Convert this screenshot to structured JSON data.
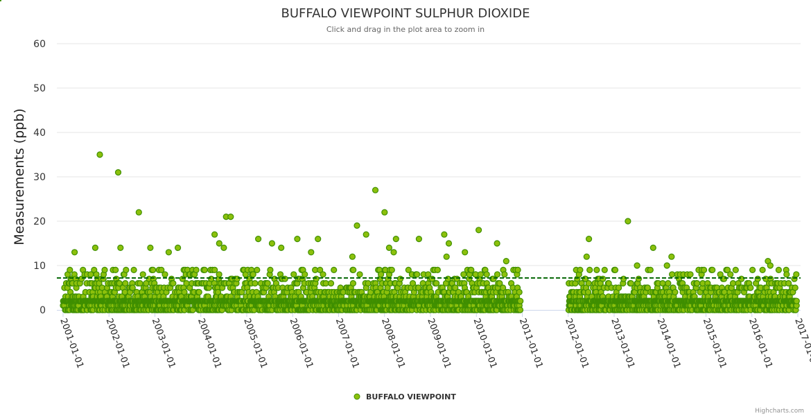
{
  "chart_data": {
    "type": "scatter",
    "title": "BUFFALO VIEWPOINT SULPHUR DIOXIDE",
    "subtitle": "Click and drag in the plot area to zoom in",
    "ylabel": "Measurements (ppb)",
    "xlabel": "",
    "ylim": [
      0,
      60
    ],
    "yticks": [
      "0",
      "10",
      "20",
      "30",
      "40",
      "50",
      "60"
    ],
    "xlim": [
      "2001-01-01",
      "2017-01-01"
    ],
    "xticks": [
      "2001-01-01",
      "2002-01-01",
      "2003-01-01",
      "2004-01-01",
      "2005-01-01",
      "2006-01-01",
      "2007-01-01",
      "2008-01-01",
      "2009-01-01",
      "2010-01-01",
      "2011-01-01",
      "2012-01-01",
      "2013-01-01",
      "2014-01-01",
      "2015-01-01",
      "2016-01-01",
      "2017-01-01"
    ],
    "grid": true,
    "legend": {
      "position": "bottom-center",
      "entries": [
        "BUFFALO VIEWPOINT"
      ]
    },
    "reference_line": {
      "value": 7.2,
      "style": "dashed",
      "color": "#006400"
    },
    "data_gap": [
      "2010-12-15",
      "2012-01-01"
    ],
    "series": [
      {
        "name": "BUFFALO VIEWPOINT",
        "color": "#7cb000",
        "marker_fill": "#8cc00c",
        "marker_line": "#3f8f00",
        "peaks": [
          {
            "x": 2001.8,
            "y": 35
          },
          {
            "x": 2002.2,
            "y": 31
          },
          {
            "x": 2002.65,
            "y": 22
          },
          {
            "x": 2001.7,
            "y": 14
          },
          {
            "x": 2002.25,
            "y": 14
          },
          {
            "x": 2002.9,
            "y": 14
          },
          {
            "x": 2003.5,
            "y": 14
          },
          {
            "x": 2001.25,
            "y": 13
          },
          {
            "x": 2003.3,
            "y": 13
          },
          {
            "x": 2004.55,
            "y": 21
          },
          {
            "x": 2004.65,
            "y": 21
          },
          {
            "x": 2004.3,
            "y": 17
          },
          {
            "x": 2004.4,
            "y": 15
          },
          {
            "x": 2004.5,
            "y": 14
          },
          {
            "x": 2005.25,
            "y": 16
          },
          {
            "x": 2005.55,
            "y": 15
          },
          {
            "x": 2005.75,
            "y": 14
          },
          {
            "x": 2006.1,
            "y": 16
          },
          {
            "x": 2006.55,
            "y": 16
          },
          {
            "x": 2006.4,
            "y": 13
          },
          {
            "x": 2007.4,
            "y": 19
          },
          {
            "x": 2007.6,
            "y": 17
          },
          {
            "x": 2007.8,
            "y": 27
          },
          {
            "x": 2007.3,
            "y": 12
          },
          {
            "x": 2008.0,
            "y": 22
          },
          {
            "x": 2008.25,
            "y": 16
          },
          {
            "x": 2008.1,
            "y": 14
          },
          {
            "x": 2008.2,
            "y": 13
          },
          {
            "x": 2008.75,
            "y": 16
          },
          {
            "x": 2009.3,
            "y": 17
          },
          {
            "x": 2009.4,
            "y": 15
          },
          {
            "x": 2009.35,
            "y": 12
          },
          {
            "x": 2010.05,
            "y": 18
          },
          {
            "x": 2009.75,
            "y": 13
          },
          {
            "x": 2010.45,
            "y": 15
          },
          {
            "x": 2010.65,
            "y": 11
          },
          {
            "x": 2012.45,
            "y": 16
          },
          {
            "x": 2012.4,
            "y": 12
          },
          {
            "x": 2013.3,
            "y": 20
          },
          {
            "x": 2013.5,
            "y": 10
          },
          {
            "x": 2013.85,
            "y": 14
          },
          {
            "x": 2014.25,
            "y": 12
          },
          {
            "x": 2014.15,
            "y": 10
          },
          {
            "x": 2016.35,
            "y": 11
          },
          {
            "x": 2016.4,
            "y": 10
          }
        ],
        "typical_range": [
          0,
          9
        ],
        "typical_median": 2
      }
    ]
  },
  "credits": "Highcharts.com"
}
